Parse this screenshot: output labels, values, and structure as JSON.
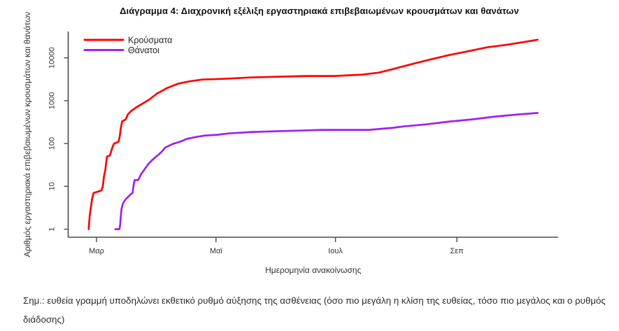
{
  "title": "Διάγραμμα 4: Διαχρονική εξέλιξη εργαστηριακά επιβεβαιωμένων κρουσμάτων και θανάτων",
  "note": "Σημ.: ευθεία γραμμή υποδηλώνει εκθετικό ρυθμό αύξησης της ασθένειας (όσο πιο μεγάλη η κλίση της ευθείας, τόσο πιο μεγάλος και ο ρυθμός διάδοσης)",
  "chart_data": {
    "type": "line",
    "title": "Διάγραμμα 4: Διαχρονική εξέλιξη εργαστηριακά επιβεβαιωμένων κρουσμάτων και θανάτων",
    "xlabel": "Ημερομηνία ανακοίνωσης",
    "ylabel": "Αριθμός εργαστηριακά επιβεβαιωμένων κρουσμάτων και θανάτων",
    "y_scale": "log",
    "ylim": [
      1,
      40000
    ],
    "y_ticks": [
      1,
      10,
      100,
      1000,
      10000
    ],
    "x_unit": "days since 1 March 2020",
    "x_range_days": [
      -14,
      234
    ],
    "x_ticks": [
      {
        "label": "Μαρ",
        "day": 0
      },
      {
        "label": "Μαϊ",
        "day": 61
      },
      {
        "label": "Ιουλ",
        "day": 122
      },
      {
        "label": "Σεπ",
        "day": 184
      }
    ],
    "grid": false,
    "legend_position": "top-left",
    "axis_color": "#4a4a4a",
    "series": [
      {
        "name": "Κρούσματα",
        "color": "#ff0000",
        "points": [
          [
            -4,
            1
          ],
          [
            -3.5,
            2
          ],
          [
            -3,
            3
          ],
          [
            -2.3,
            5
          ],
          [
            -1.5,
            7
          ],
          [
            2.5,
            8
          ],
          [
            3.2,
            10
          ],
          [
            3.8,
            17
          ],
          [
            4.5,
            24
          ],
          [
            5,
            38
          ],
          [
            5.4,
            50
          ],
          [
            6.8,
            52
          ],
          [
            7.5,
            66
          ],
          [
            8.2,
            84
          ],
          [
            8.9,
            99
          ],
          [
            11.2,
            110
          ],
          [
            11.9,
            150
          ],
          [
            12.4,
            228
          ],
          [
            13.1,
            331
          ],
          [
            14.9,
            365
          ],
          [
            16,
            476
          ],
          [
            17.7,
            575
          ],
          [
            20.2,
            694
          ],
          [
            23.8,
            868
          ],
          [
            27.3,
            1089
          ],
          [
            30.9,
            1470
          ],
          [
            36.2,
            1990
          ],
          [
            41.5,
            2490
          ],
          [
            46.8,
            2790
          ],
          [
            53.9,
            3120
          ],
          [
            64.5,
            3240
          ],
          [
            78.7,
            3490
          ],
          [
            92.9,
            3630
          ],
          [
            107.1,
            3770
          ],
          [
            121.3,
            3770
          ],
          [
            135.5,
            4060
          ],
          [
            144.3,
            4540
          ],
          [
            151.4,
            5480
          ],
          [
            156.7,
            6370
          ],
          [
            163.8,
            7690
          ],
          [
            170.9,
            9270
          ],
          [
            179.8,
            11600
          ],
          [
            188.7,
            14000
          ],
          [
            199.3,
            17600
          ],
          [
            209.9,
            20400
          ],
          [
            218.8,
            23700
          ],
          [
            225.2,
            26500
          ]
        ]
      },
      {
        "name": "Θάνατοι",
        "color": "#a020f0",
        "points": [
          [
            9.6,
            1
          ],
          [
            11.7,
            1
          ],
          [
            12.1,
            1.3
          ],
          [
            12.4,
            2
          ],
          [
            12.8,
            3
          ],
          [
            13.5,
            4
          ],
          [
            14.9,
            5
          ],
          [
            16.7,
            6
          ],
          [
            17.4,
            6.5
          ],
          [
            18.4,
            7
          ],
          [
            19.1,
            12
          ],
          [
            19.5,
            14
          ],
          [
            21.3,
            14
          ],
          [
            22.7,
            19
          ],
          [
            24.8,
            26
          ],
          [
            26.6,
            34
          ],
          [
            28.4,
            41
          ],
          [
            30.1,
            48
          ],
          [
            31.9,
            56
          ],
          [
            33.7,
            67
          ],
          [
            35.1,
            81
          ],
          [
            36.9,
            88
          ],
          [
            39,
            98
          ],
          [
            42.6,
            110
          ],
          [
            46.1,
            128
          ],
          [
            51.1,
            143
          ],
          [
            55.7,
            154
          ],
          [
            61.7,
            160
          ],
          [
            67.4,
            172
          ],
          [
            79.4,
            186
          ],
          [
            91.1,
            193
          ],
          [
            102.8,
            200
          ],
          [
            114.9,
            208
          ],
          [
            139,
            208
          ],
          [
            151.4,
            233
          ],
          [
            156.7,
            250
          ],
          [
            168.4,
            280
          ],
          [
            180.5,
            327
          ],
          [
            192.2,
            367
          ],
          [
            203.9,
            428
          ],
          [
            216,
            480
          ],
          [
            225.2,
            517
          ]
        ]
      }
    ]
  }
}
